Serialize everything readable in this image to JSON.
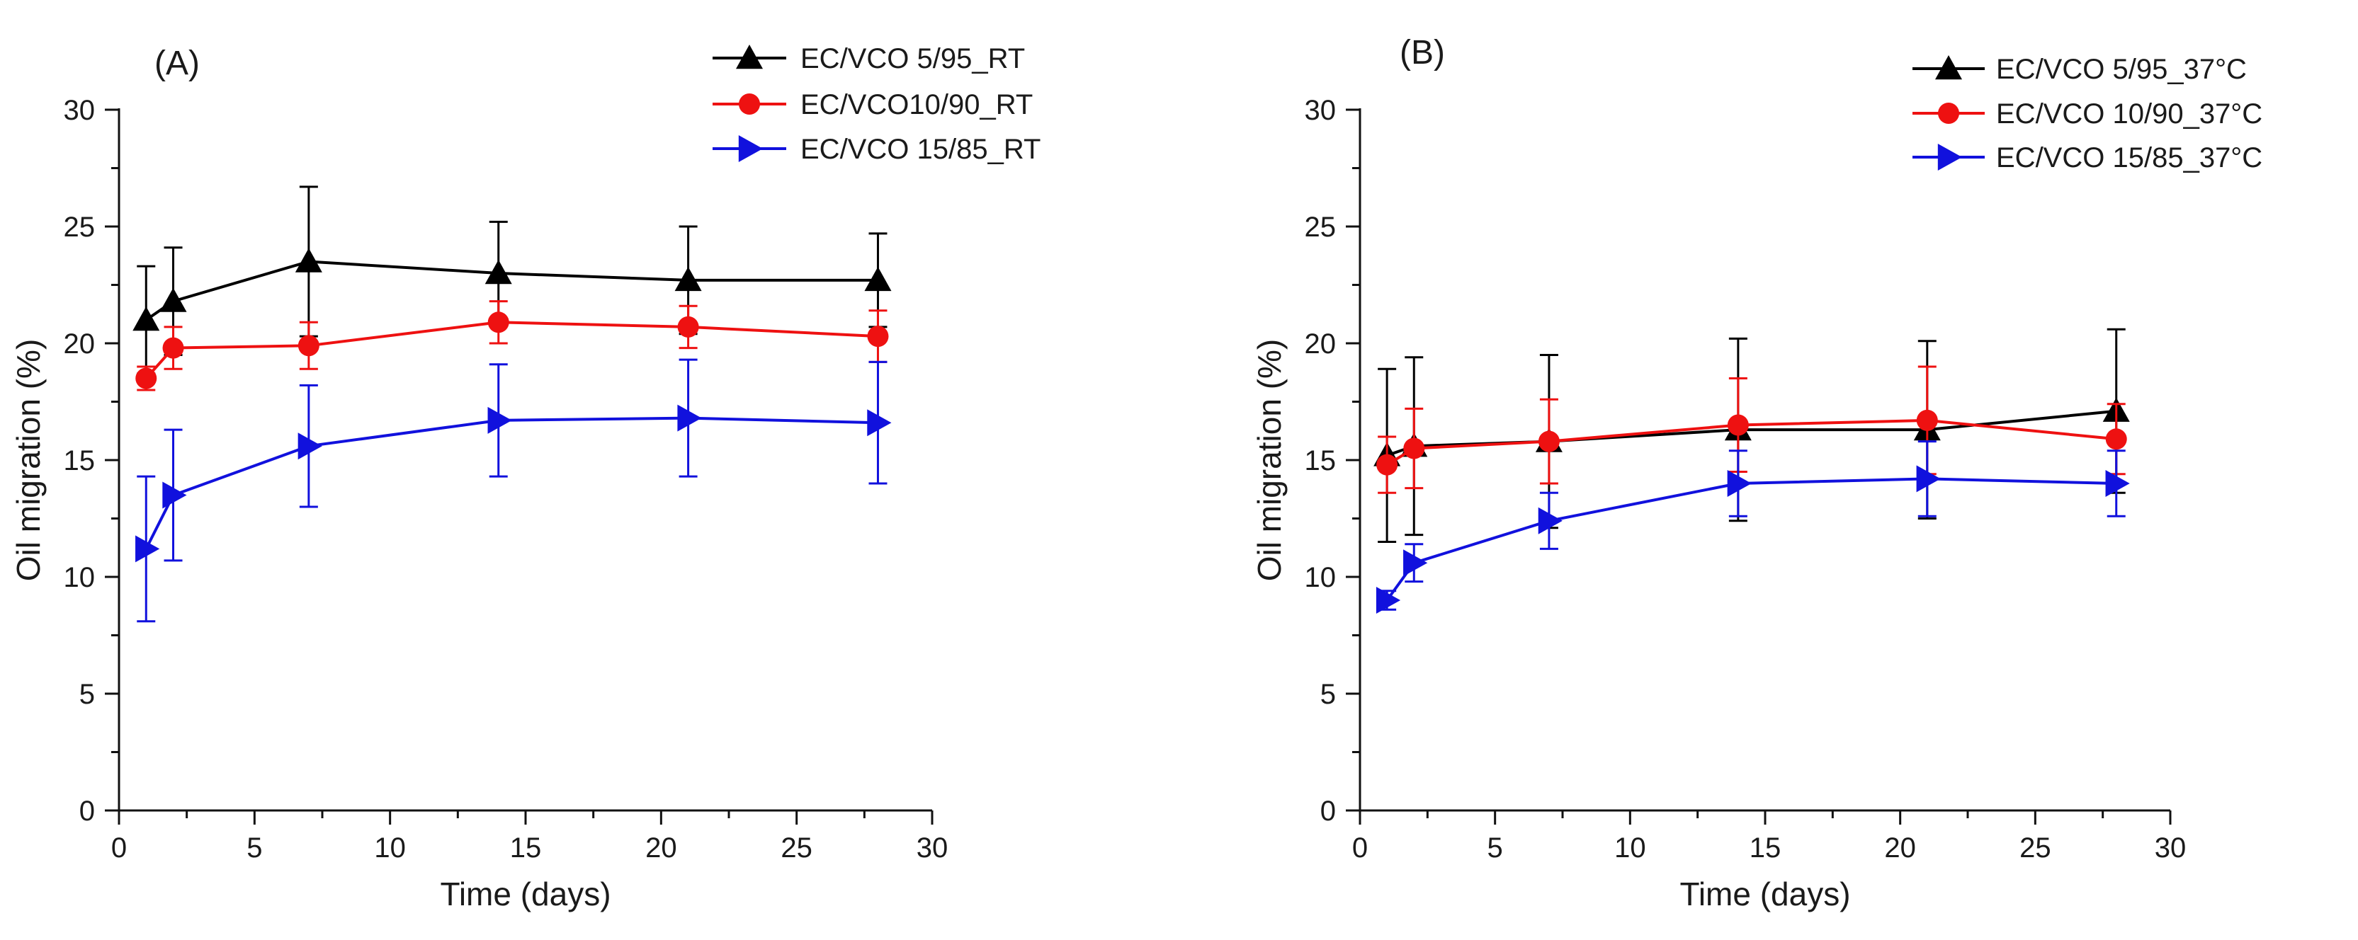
{
  "chart_data": [
    {
      "type": "line",
      "panel_label": "(A)",
      "xlabel": "Time (days)",
      "ylabel": "Oil migration (%)",
      "xlim": [
        0,
        30
      ],
      "ylim": [
        0,
        30
      ],
      "xticks": [
        0,
        5,
        10,
        15,
        20,
        25,
        30
      ],
      "yticks": [
        0,
        5,
        10,
        15,
        20,
        25,
        30
      ],
      "grid": false,
      "legend_position": "top-right",
      "x": [
        1,
        2,
        7,
        14,
        21,
        28
      ],
      "series": [
        {
          "name": "EC/VCO 5/95_RT",
          "color": "#000000",
          "marker": "triangle-up",
          "values": [
            21.0,
            21.8,
            23.5,
            23.0,
            22.7,
            22.7
          ],
          "errors": [
            2.3,
            2.3,
            3.2,
            2.2,
            2.3,
            2.0
          ]
        },
        {
          "name": "EC/VCO10/90_RT",
          "color": "#ee1111",
          "marker": "circle",
          "values": [
            18.5,
            19.8,
            19.9,
            20.9,
            20.7,
            20.3
          ],
          "errors": [
            0.5,
            0.9,
            1.0,
            0.9,
            0.9,
            1.1
          ]
        },
        {
          "name": "EC/VCO 15/85_RT",
          "color": "#1111dd",
          "marker": "triangle-right",
          "values": [
            11.2,
            13.5,
            15.6,
            16.7,
            16.8,
            16.6
          ],
          "errors": [
            3.1,
            2.8,
            2.6,
            2.4,
            2.5,
            2.6
          ]
        }
      ]
    },
    {
      "type": "line",
      "panel_label": "(B)",
      "xlabel": "Time (days)",
      "ylabel": "Oil migration (%)",
      "xlim": [
        0,
        30
      ],
      "ylim": [
        0,
        30
      ],
      "xticks": [
        0,
        5,
        10,
        15,
        20,
        25,
        30
      ],
      "yticks": [
        0,
        5,
        10,
        15,
        20,
        25,
        30
      ],
      "grid": false,
      "legend_position": "top-right",
      "x": [
        1,
        2,
        7,
        14,
        21,
        28
      ],
      "series": [
        {
          "name": "EC/VCO 5/95_37°C",
          "color": "#000000",
          "marker": "triangle-up",
          "values": [
            15.2,
            15.6,
            15.8,
            16.3,
            16.3,
            17.1
          ],
          "errors": [
            3.7,
            3.8,
            3.7,
            3.9,
            3.8,
            3.5
          ]
        },
        {
          "name": "EC/VCO 10/90_37°C",
          "color": "#ee1111",
          "marker": "circle",
          "values": [
            14.8,
            15.5,
            15.8,
            16.5,
            16.7,
            15.9
          ],
          "errors": [
            1.2,
            1.7,
            1.8,
            2.0,
            2.3,
            1.5
          ]
        },
        {
          "name": "EC/VCO 15/85_37°C",
          "color": "#1111dd",
          "marker": "triangle-right",
          "values": [
            9.0,
            10.6,
            12.4,
            14.0,
            14.2,
            14.0
          ],
          "errors": [
            0.4,
            0.8,
            1.2,
            1.4,
            1.6,
            1.4
          ]
        }
      ]
    }
  ]
}
